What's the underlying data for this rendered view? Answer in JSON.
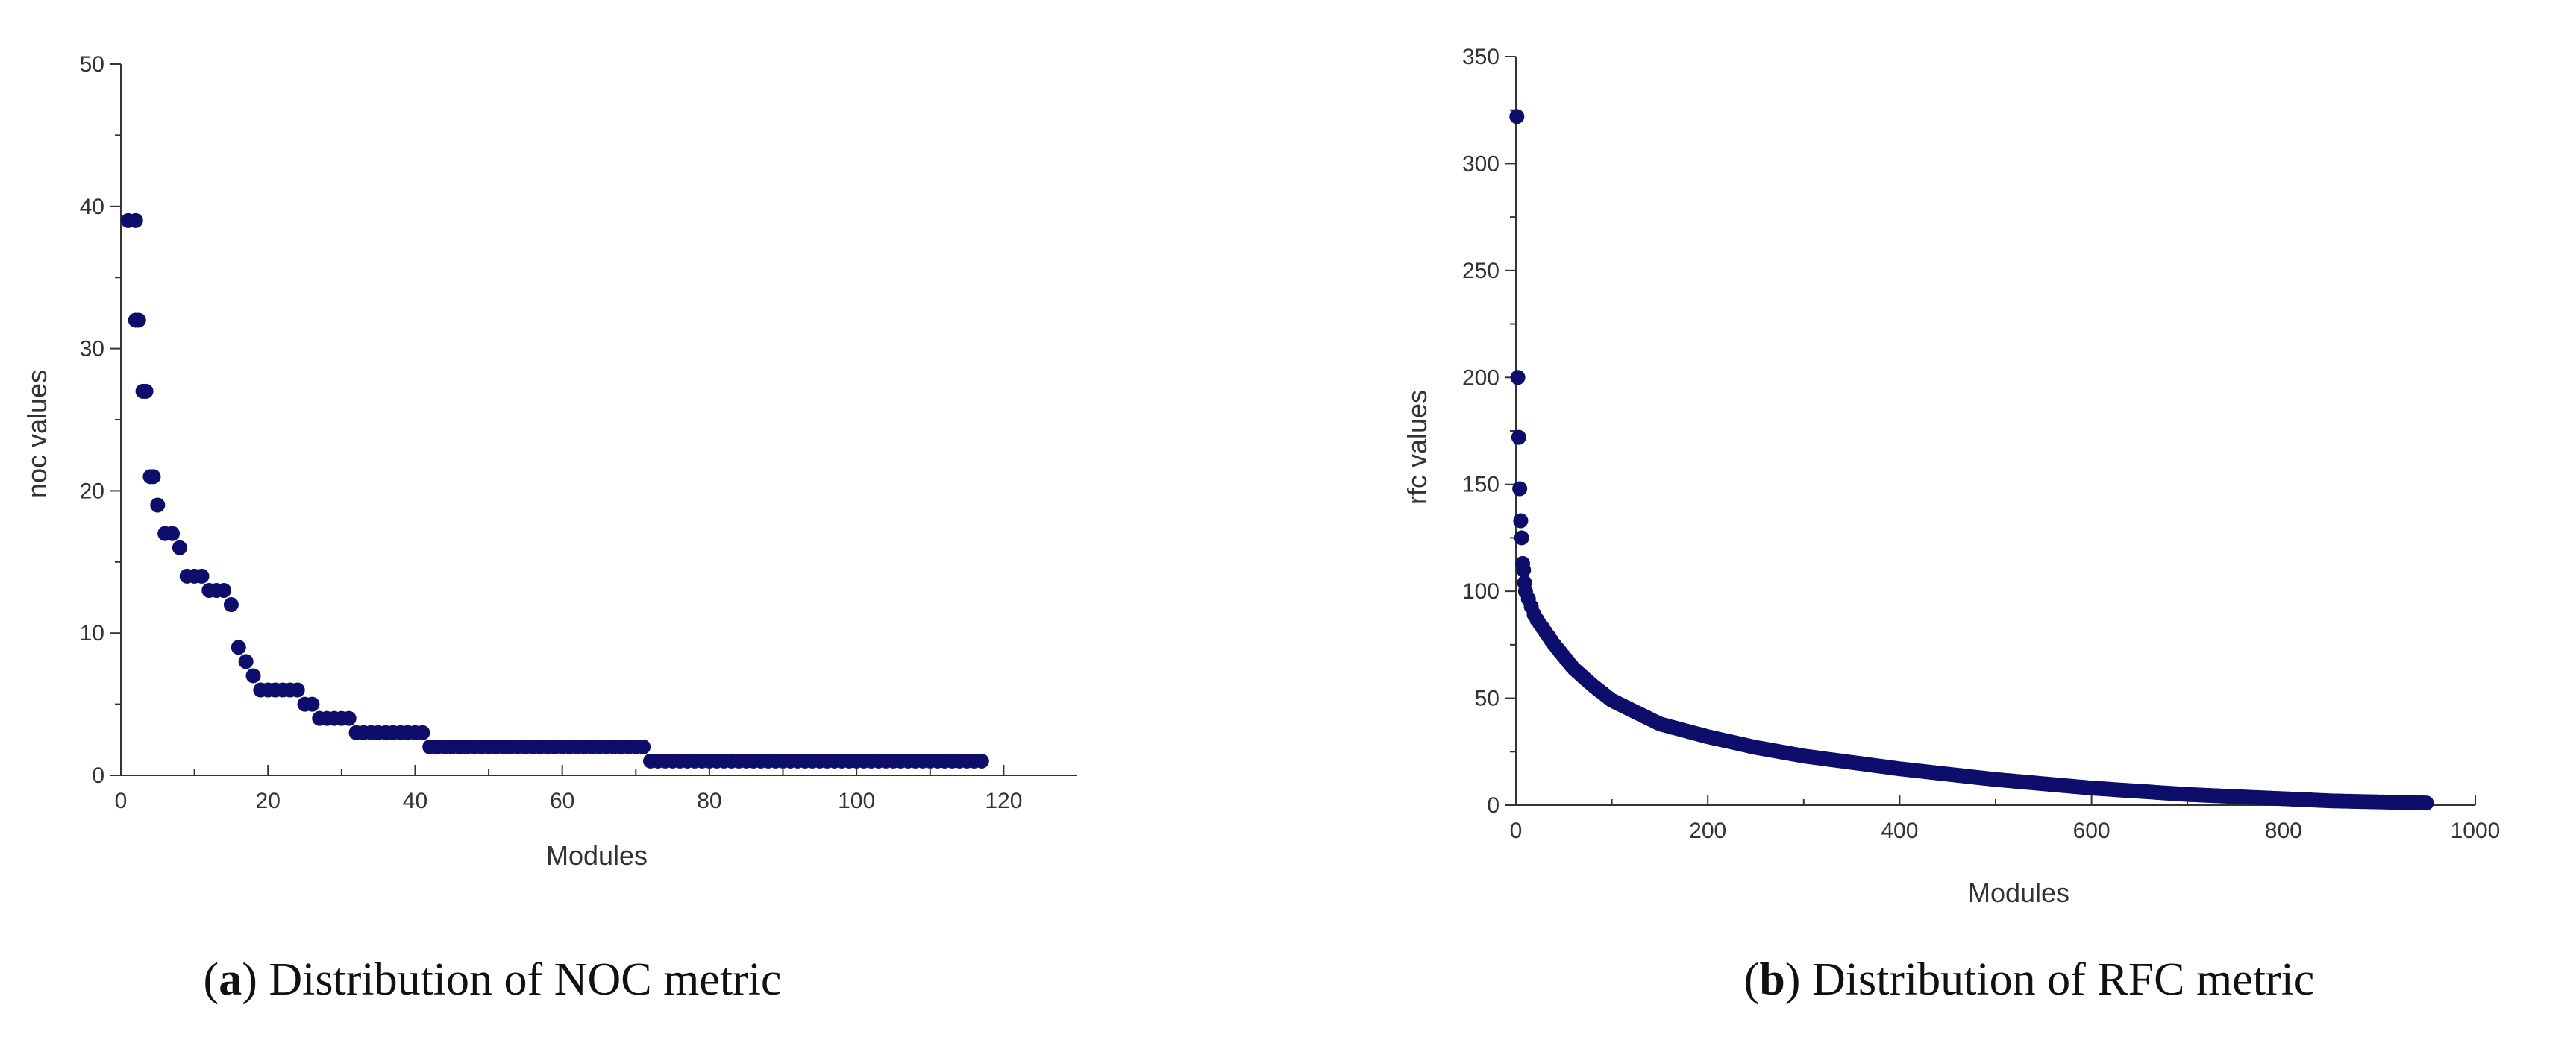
{
  "chart_data": [
    {
      "type": "scatter",
      "panel": "a",
      "caption_letter": "a",
      "caption_text": " Distribution of NOC metric",
      "xlabel": "Modules",
      "ylabel": "noc values",
      "xlim": [
        0,
        130
      ],
      "ylim": [
        0,
        50
      ],
      "xticks": [
        0,
        20,
        40,
        60,
        80,
        100,
        120
      ],
      "yticks": [
        0,
        10,
        20,
        30,
        40,
        50
      ],
      "marker_color": "#0d0d6b",
      "series": [
        {
          "name": "noc",
          "runs": [
            {
              "from": 1,
              "to": 2,
              "value": 39
            },
            {
              "from": 2,
              "to": 2,
              "value": 32
            },
            {
              "from": 3,
              "to": 3,
              "value": 27
            },
            {
              "from": 4,
              "to": 4,
              "value": 21
            },
            {
              "from": 5,
              "to": 5,
              "value": 19
            },
            {
              "from": 6,
              "to": 7,
              "value": 17
            },
            {
              "from": 8,
              "to": 8,
              "value": 16
            },
            {
              "from": 9,
              "to": 11,
              "value": 14
            },
            {
              "from": 12,
              "to": 14,
              "value": 13
            },
            {
              "from": 15,
              "to": 15,
              "value": 12
            },
            {
              "from": 16,
              "to": 16,
              "value": 9
            },
            {
              "from": 17,
              "to": 17,
              "value": 8
            },
            {
              "from": 18,
              "to": 18,
              "value": 7
            },
            {
              "from": 19,
              "to": 24,
              "value": 6
            },
            {
              "from": 25,
              "to": 26,
              "value": 5
            },
            {
              "from": 27,
              "to": 31,
              "value": 4
            },
            {
              "from": 32,
              "to": 41,
              "value": 3
            },
            {
              "from": 42,
              "to": 71,
              "value": 2
            },
            {
              "from": 72,
              "to": 117,
              "value": 1
            }
          ]
        }
      ]
    },
    {
      "type": "scatter",
      "panel": "b",
      "caption_letter": "b",
      "caption_text": " Distribution of RFC metric",
      "xlabel": "Modules",
      "ylabel": "rfc values",
      "xlim": [
        0,
        1000
      ],
      "ylim": [
        0,
        350
      ],
      "xticks": [
        0,
        200,
        400,
        600,
        800,
        1000
      ],
      "yticks": [
        0,
        50,
        100,
        150,
        200,
        250,
        300,
        350
      ],
      "marker_color": "#0d0d6b",
      "series": [
        {
          "name": "rfc",
          "outliers": [
            {
              "x": 1,
              "y": 322
            },
            {
              "x": 2,
              "y": 200
            },
            {
              "x": 3,
              "y": 172
            },
            {
              "x": 4,
              "y": 148
            },
            {
              "x": 5,
              "y": 133
            },
            {
              "x": 6,
              "y": 125
            },
            {
              "x": 7,
              "y": 113
            },
            {
              "x": 8,
              "y": 110
            },
            {
              "x": 9,
              "y": 104
            }
          ],
          "curve_points": [
            {
              "x": 10,
              "y": 100
            },
            {
              "x": 20,
              "y": 88
            },
            {
              "x": 40,
              "y": 75
            },
            {
              "x": 60,
              "y": 64
            },
            {
              "x": 80,
              "y": 56
            },
            {
              "x": 100,
              "y": 49
            },
            {
              "x": 150,
              "y": 38
            },
            {
              "x": 200,
              "y": 32
            },
            {
              "x": 250,
              "y": 27
            },
            {
              "x": 300,
              "y": 23
            },
            {
              "x": 400,
              "y": 17
            },
            {
              "x": 500,
              "y": 12
            },
            {
              "x": 600,
              "y": 8
            },
            {
              "x": 700,
              "y": 5
            },
            {
              "x": 800,
              "y": 3
            },
            {
              "x": 850,
              "y": 2
            },
            {
              "x": 950,
              "y": 1
            }
          ]
        }
      ]
    }
  ]
}
